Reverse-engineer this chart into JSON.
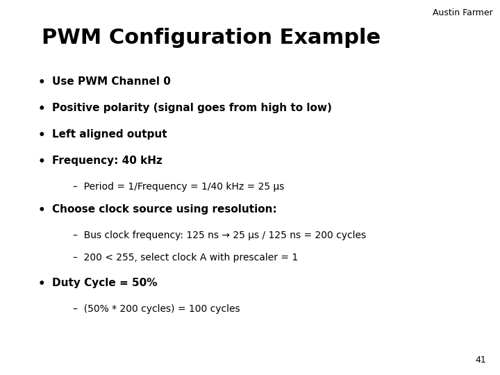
{
  "background_color": "#ffffff",
  "author": "Austin Farmer",
  "title": "PWM Configuration Example",
  "page_number": "41",
  "bullet_items": [
    "Use PWM Channel 0",
    "Positive polarity (signal goes from high to low)",
    "Left aligned output",
    "Frequency: 40 kHz"
  ],
  "sub_bullet_freq": "–  Period = 1/Frequency = 1/40 kHz = 25 μs",
  "bullet_choose": "Choose clock source using resolution:",
  "sub_bullets_choose": [
    "–  Bus clock frequency: 125 ns → 25 μs / 125 ns = 200 cycles",
    "–  200 < 255, select clock A with prescaler = 1"
  ],
  "bullet_duty": "Duty Cycle = 50%",
  "sub_bullet_duty": "–  (50% * 200 cycles) = 100 cycles",
  "title_fontsize": 22,
  "author_fontsize": 9,
  "bullet_fontsize": 11,
  "sub_bullet_fontsize": 10,
  "page_num_fontsize": 9,
  "text_color": "#000000",
  "font_family": "DejaVu Sans"
}
